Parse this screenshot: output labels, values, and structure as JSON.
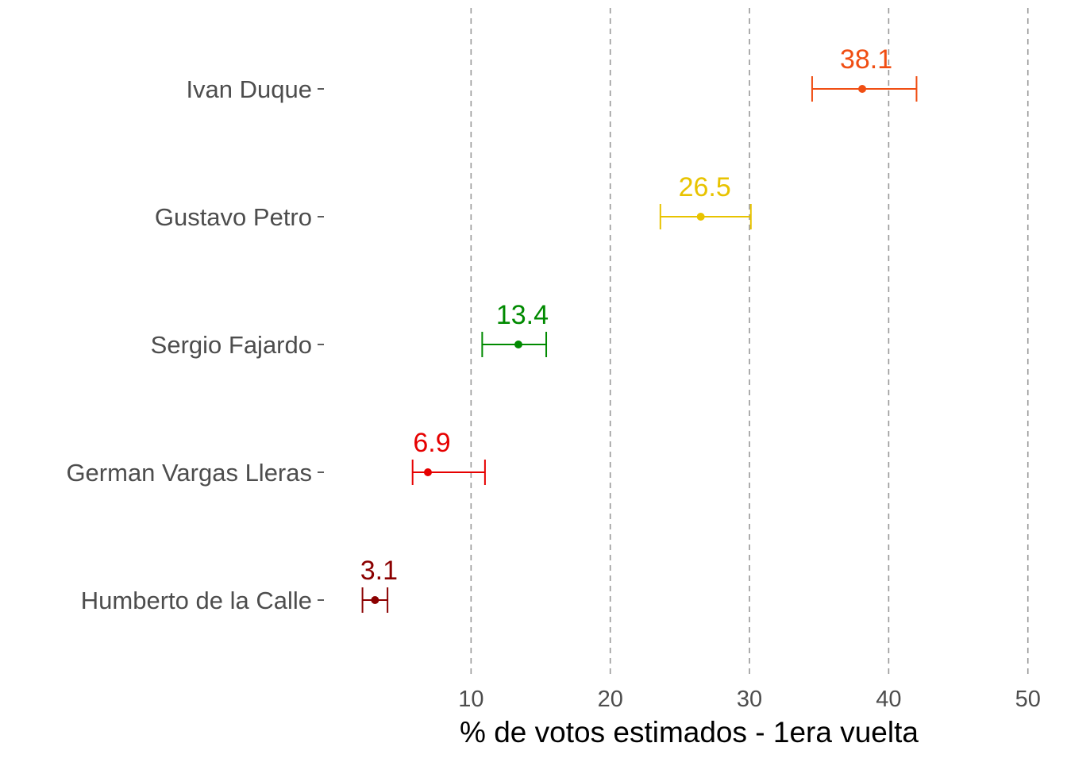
{
  "chart_data": {
    "type": "scatter",
    "orientation": "horizontal",
    "title": "",
    "xlabel": "% de votos estimados - 1era vuelta",
    "ylabel": "",
    "xlim": [
      0,
      50.3
    ],
    "x_ticks": [
      10,
      20,
      30,
      40,
      50
    ],
    "x_tick_labels": [
      "10",
      "20",
      "30",
      "40",
      "50"
    ],
    "grid": "vertical dashed at major ticks",
    "legend": "none",
    "categories": [
      "Ivan Duque",
      "Gustavo Petro",
      "Sergio Fajardo",
      "German Vargas Lleras",
      "Humberto de la Calle"
    ],
    "values": [
      38.1,
      26.5,
      13.4,
      6.9,
      3.1
    ],
    "value_labels": [
      "38.1",
      "26.5",
      "13.4",
      "6.9",
      "3.1"
    ],
    "lower": [
      34.5,
      23.6,
      10.8,
      5.8,
      2.2
    ],
    "upper": [
      42.0,
      30.1,
      15.4,
      11.0,
      4.0
    ],
    "colors": [
      "#f04e13",
      "#e8c300",
      "#008a00",
      "#e60000",
      "#8b0000"
    ]
  }
}
